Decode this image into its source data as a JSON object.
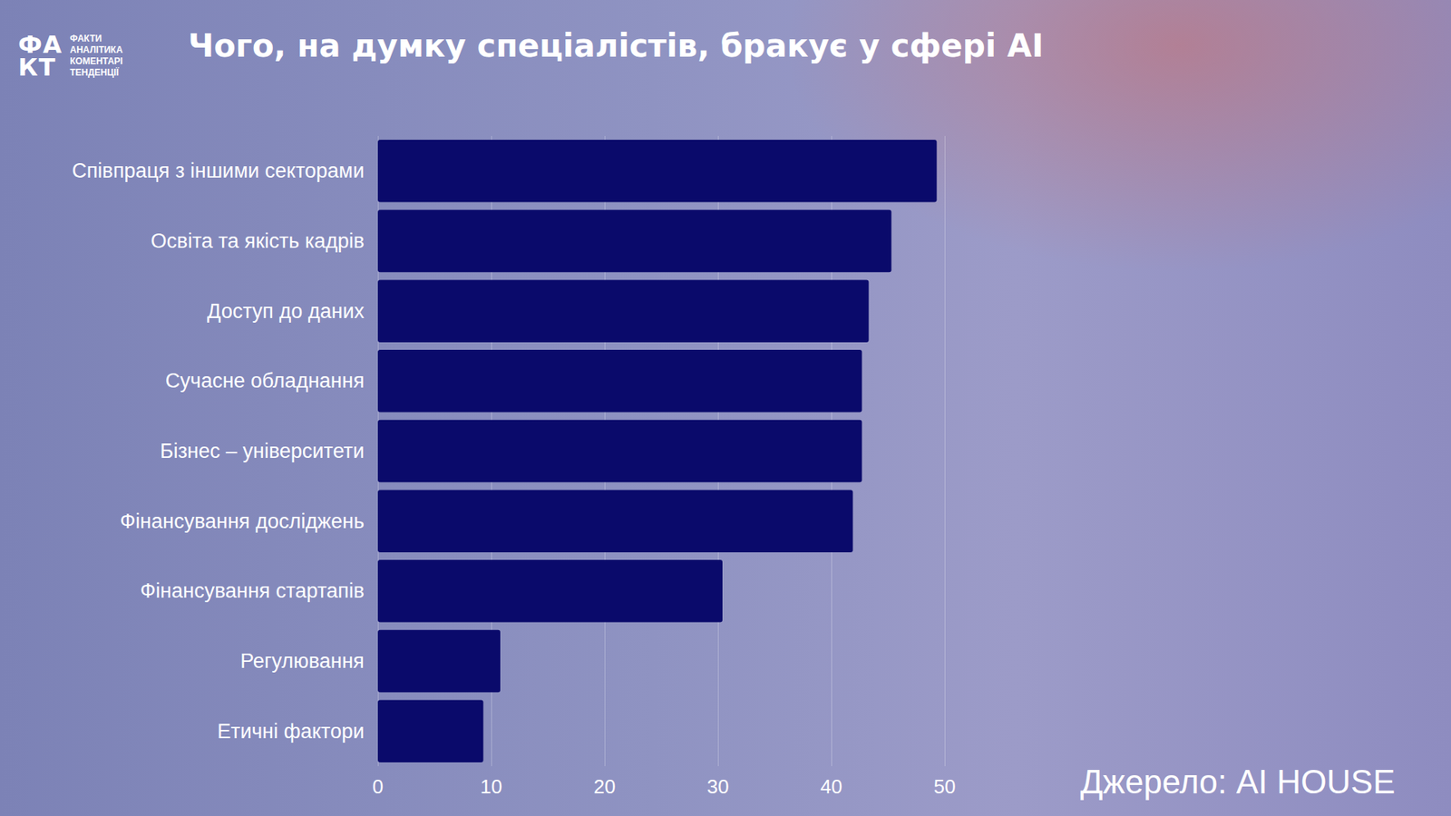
{
  "chart_data": {
    "type": "bar",
    "orientation": "horizontal",
    "title": "Чого, на думку спеціалістів, бракує у сфері AI",
    "source": "Джерело: AI HOUSE",
    "logo_mark": [
      "ФА",
      "КТ"
    ],
    "logo_lines": [
      "ФАКТИ",
      "АНАЛІТИКА",
      "КОМЕНТАРІ",
      "ТЕНДЕНЦІЇ"
    ],
    "categories": [
      "Співпраця з іншими секторами",
      "Освіта та якість кадрів",
      "Доступ до даних",
      "Сучасне обладнання",
      "Бізнес – університети",
      "Фінансування досліджень",
      "Фінансування стартапів",
      "Регулювання",
      "Етичні фактори"
    ],
    "values": [
      49.3,
      45.3,
      43.3,
      42.7,
      42.7,
      41.9,
      30.4,
      10.8,
      9.3
    ],
    "color": "#0a0a6b",
    "xlim": [
      0,
      50
    ],
    "xticks": [
      0,
      10,
      20,
      30,
      40,
      50
    ],
    "grid": true
  }
}
